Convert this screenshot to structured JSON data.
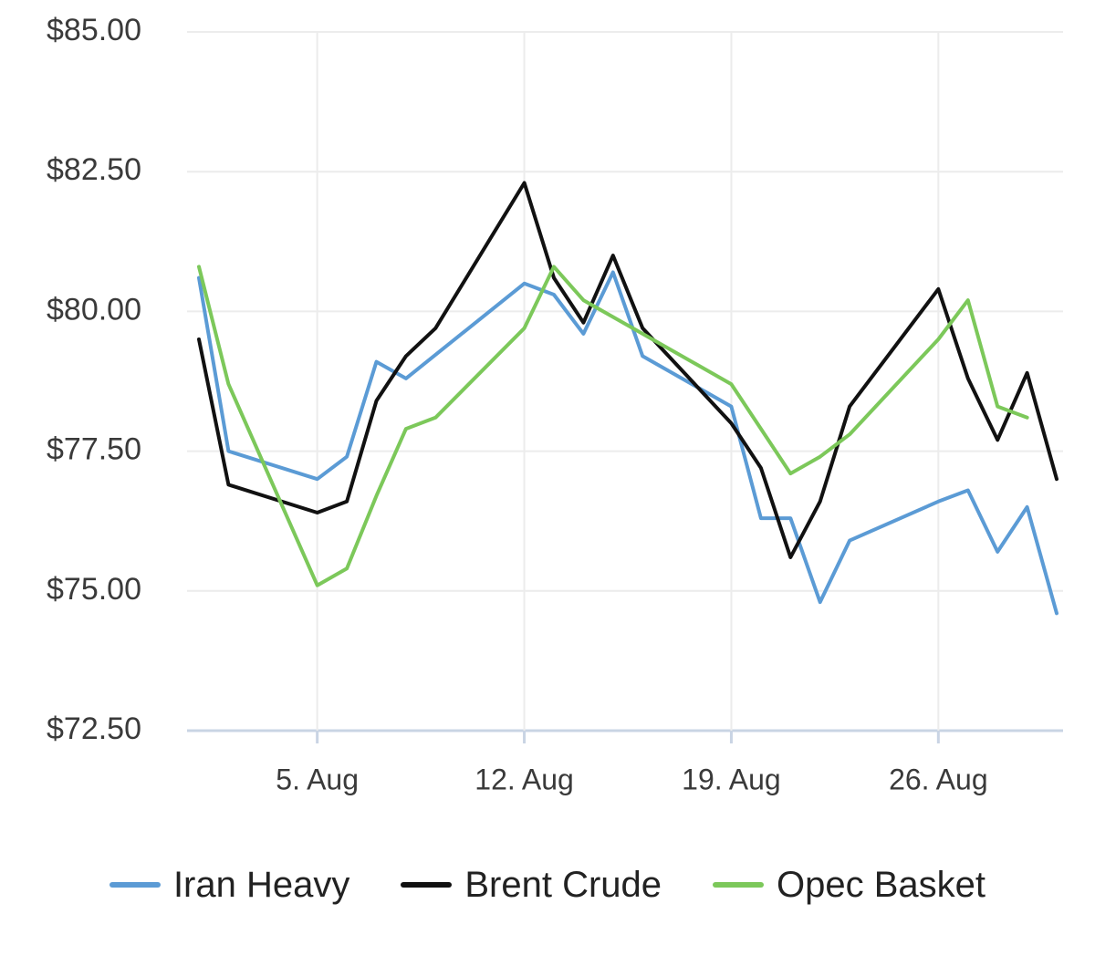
{
  "chart_data": {
    "type": "line",
    "title": "",
    "xlabel": "",
    "ylabel": "",
    "ylim": [
      72.5,
      85.0
    ],
    "xlim": [
      "2019-08-01",
      "2019-08-30"
    ],
    "grid": true,
    "legend_position": "bottom",
    "y_ticks": [
      "$72.50",
      "$75.00",
      "$77.50",
      "$80.00",
      "$82.50",
      "$85.00"
    ],
    "x_ticks": [
      {
        "date": "2019-08-05",
        "label": "5. Aug"
      },
      {
        "date": "2019-08-12",
        "label": "12. Aug"
      },
      {
        "date": "2019-08-19",
        "label": "19. Aug"
      },
      {
        "date": "2019-08-26",
        "label": "26. Aug"
      }
    ],
    "series": [
      {
        "name": "Iran Heavy",
        "color": "#5b9bd5",
        "points": [
          [
            "2019-08-01",
            80.6
          ],
          [
            "2019-08-02",
            77.5
          ],
          [
            "2019-08-05",
            77.0
          ],
          [
            "2019-08-06",
            77.4
          ],
          [
            "2019-08-07",
            79.1
          ],
          [
            "2019-08-08",
            78.8
          ],
          [
            "2019-08-12",
            80.5
          ],
          [
            "2019-08-13",
            80.3
          ],
          [
            "2019-08-14",
            79.6
          ],
          [
            "2019-08-15",
            80.7
          ],
          [
            "2019-08-16",
            79.2
          ],
          [
            "2019-08-19",
            78.3
          ],
          [
            "2019-08-20",
            76.3
          ],
          [
            "2019-08-21",
            76.3
          ],
          [
            "2019-08-22",
            74.8
          ],
          [
            "2019-08-23",
            75.9
          ],
          [
            "2019-08-26",
            76.6
          ],
          [
            "2019-08-27",
            76.8
          ],
          [
            "2019-08-28",
            75.7
          ],
          [
            "2019-08-29",
            76.5
          ],
          [
            "2019-08-30",
            74.6
          ]
        ]
      },
      {
        "name": "Brent Crude",
        "color": "#111111",
        "points": [
          [
            "2019-08-01",
            79.5
          ],
          [
            "2019-08-02",
            76.9
          ],
          [
            "2019-08-05",
            76.4
          ],
          [
            "2019-08-06",
            76.6
          ],
          [
            "2019-08-07",
            78.4
          ],
          [
            "2019-08-08",
            79.2
          ],
          [
            "2019-08-09",
            79.7
          ],
          [
            "2019-08-12",
            82.3
          ],
          [
            "2019-08-13",
            80.6
          ],
          [
            "2019-08-14",
            79.8
          ],
          [
            "2019-08-15",
            81.0
          ],
          [
            "2019-08-16",
            79.7
          ],
          [
            "2019-08-19",
            78.0
          ],
          [
            "2019-08-20",
            77.2
          ],
          [
            "2019-08-21",
            75.6
          ],
          [
            "2019-08-22",
            76.6
          ],
          [
            "2019-08-23",
            78.3
          ],
          [
            "2019-08-26",
            80.4
          ],
          [
            "2019-08-27",
            78.8
          ],
          [
            "2019-08-28",
            77.7
          ],
          [
            "2019-08-29",
            78.9
          ],
          [
            "2019-08-30",
            77.0
          ]
        ]
      },
      {
        "name": "Opec Basket",
        "color": "#7cc85a",
        "points": [
          [
            "2019-08-01",
            80.8
          ],
          [
            "2019-08-02",
            78.7
          ],
          [
            "2019-08-05",
            75.1
          ],
          [
            "2019-08-06",
            75.4
          ],
          [
            "2019-08-07",
            76.7
          ],
          [
            "2019-08-08",
            77.9
          ],
          [
            "2019-08-09",
            78.1
          ],
          [
            "2019-08-12",
            79.7
          ],
          [
            "2019-08-13",
            80.8
          ],
          [
            "2019-08-14",
            80.2
          ],
          [
            "2019-08-15",
            79.9
          ],
          [
            "2019-08-16",
            79.6
          ],
          [
            "2019-08-19",
            78.7
          ],
          [
            "2019-08-20",
            77.9
          ],
          [
            "2019-08-21",
            77.1
          ],
          [
            "2019-08-22",
            77.4
          ],
          [
            "2019-08-23",
            77.8
          ],
          [
            "2019-08-26",
            79.5
          ],
          [
            "2019-08-27",
            80.2
          ],
          [
            "2019-08-28",
            78.3
          ],
          [
            "2019-08-29",
            78.1
          ]
        ]
      }
    ]
  }
}
